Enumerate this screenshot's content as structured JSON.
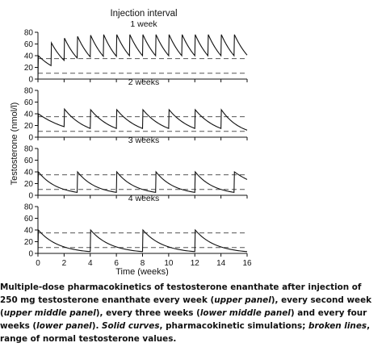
{
  "figure_title": "Injection interval",
  "chart_data": [
    {
      "type": "line",
      "panel_label": "1 week",
      "xlabel": "Time (weeks)",
      "ylabel": "Testosterone (nmol/l)",
      "xlim": [
        0,
        16
      ],
      "ylim": [
        0,
        80
      ],
      "xticks": [
        0,
        2,
        4,
        6,
        8,
        10,
        12,
        14,
        16
      ],
      "yticks": [
        0,
        20,
        40,
        60,
        80
      ],
      "normal_range": [
        10,
        35
      ],
      "series": [
        {
          "points": [
            [
              0,
              0
            ],
            [
              0.03,
              40
            ],
            [
              1,
              23
            ],
            [
              1.03,
              62
            ],
            [
              2,
              32
            ],
            [
              2.03,
              70
            ],
            [
              3,
              36
            ],
            [
              3.03,
              73
            ],
            [
              4,
              38
            ],
            [
              4.03,
              75
            ],
            [
              5,
              39
            ],
            [
              5.03,
              76
            ],
            [
              6,
              39
            ],
            [
              6.03,
              76
            ],
            [
              7,
              40
            ],
            [
              7.03,
              76
            ],
            [
              8,
              40
            ],
            [
              8.03,
              76
            ],
            [
              9,
              40
            ],
            [
              9.03,
              76
            ],
            [
              10,
              40
            ],
            [
              10.03,
              76
            ],
            [
              11,
              40
            ],
            [
              11.03,
              76
            ],
            [
              12,
              40
            ],
            [
              12.03,
              76
            ],
            [
              13,
              40
            ],
            [
              13.03,
              76
            ],
            [
              14,
              40
            ],
            [
              14.03,
              76
            ],
            [
              15,
              40
            ],
            [
              15.03,
              76
            ],
            [
              16,
              41
            ]
          ]
        }
      ]
    },
    {
      "type": "line",
      "panel_label": "2 weeks",
      "xlim": [
        0,
        16
      ],
      "ylim": [
        0,
        80
      ],
      "yticks": [
        0,
        20,
        40,
        60,
        80
      ],
      "normal_range": [
        10,
        35
      ],
      "series": [
        {
          "points": [
            [
              0,
              0
            ],
            [
              0.03,
              40
            ],
            [
              2,
              18
            ],
            [
              2.03,
              48
            ],
            [
              4,
              15
            ],
            [
              4.03,
              47
            ],
            [
              6,
              15
            ],
            [
              6.03,
              47
            ],
            [
              8,
              15
            ],
            [
              8.03,
              47
            ],
            [
              10,
              15
            ],
            [
              10.03,
              47
            ],
            [
              12,
              15
            ],
            [
              12.03,
              47
            ],
            [
              14,
              15
            ],
            [
              14.03,
              47
            ],
            [
              16,
              12
            ]
          ]
        }
      ]
    },
    {
      "type": "line",
      "panel_label": "3 weeks",
      "xlim": [
        0,
        16
      ],
      "ylim": [
        0,
        80
      ],
      "yticks": [
        0,
        20,
        40,
        60,
        80
      ],
      "normal_range": [
        10,
        35
      ],
      "series": [
        {
          "points": [
            [
              0,
              0
            ],
            [
              0.03,
              40
            ],
            [
              3,
              5
            ],
            [
              3.03,
              40
            ],
            [
              6,
              5
            ],
            [
              6.03,
              40
            ],
            [
              9,
              5
            ],
            [
              9.03,
              40
            ],
            [
              12,
              5
            ],
            [
              12.03,
              40
            ],
            [
              15,
              5
            ],
            [
              15.03,
              40
            ],
            [
              16,
              27
            ]
          ]
        }
      ]
    },
    {
      "type": "line",
      "panel_label": "4 weeks",
      "xlim": [
        0,
        16
      ],
      "ylim": [
        0,
        80
      ],
      "yticks": [
        0,
        20,
        40,
        60,
        80
      ],
      "normal_range": [
        10,
        35
      ],
      "series": [
        {
          "points": [
            [
              0,
              0
            ],
            [
              0.03,
              40
            ],
            [
              4,
              3
            ],
            [
              4.03,
              40
            ],
            [
              8,
              3
            ],
            [
              8.03,
              40
            ],
            [
              12,
              3
            ],
            [
              12.03,
              40
            ],
            [
              16,
              3
            ]
          ]
        }
      ]
    }
  ],
  "caption": {
    "parts": [
      {
        "text": "Multiple-dose pharmacokinetics of testosterone enanthate after injection of 250 mg testos­terone enanthate every week (",
        "style": "b"
      },
      {
        "text": "upper panel",
        "style": "bi"
      },
      {
        "text": "), every second week (",
        "style": "b"
      },
      {
        "text": "upper middle panel",
        "style": "bi"
      },
      {
        "text": "), every three weeks (",
        "style": "b"
      },
      {
        "text": "lower middle panel",
        "style": "bi"
      },
      {
        "text": ") and every four weeks (",
        "style": "b"
      },
      {
        "text": "lower panel",
        "style": "bi"
      },
      {
        "text": "). ",
        "style": "b"
      },
      {
        "text": "Solid curves",
        "style": "bi"
      },
      {
        "text": ", pharmacokinetic simulations; ",
        "style": "b"
      },
      {
        "text": "broken lines",
        "style": "bi"
      },
      {
        "text": ", range of normal testosterone values.",
        "style": "b"
      }
    ]
  }
}
